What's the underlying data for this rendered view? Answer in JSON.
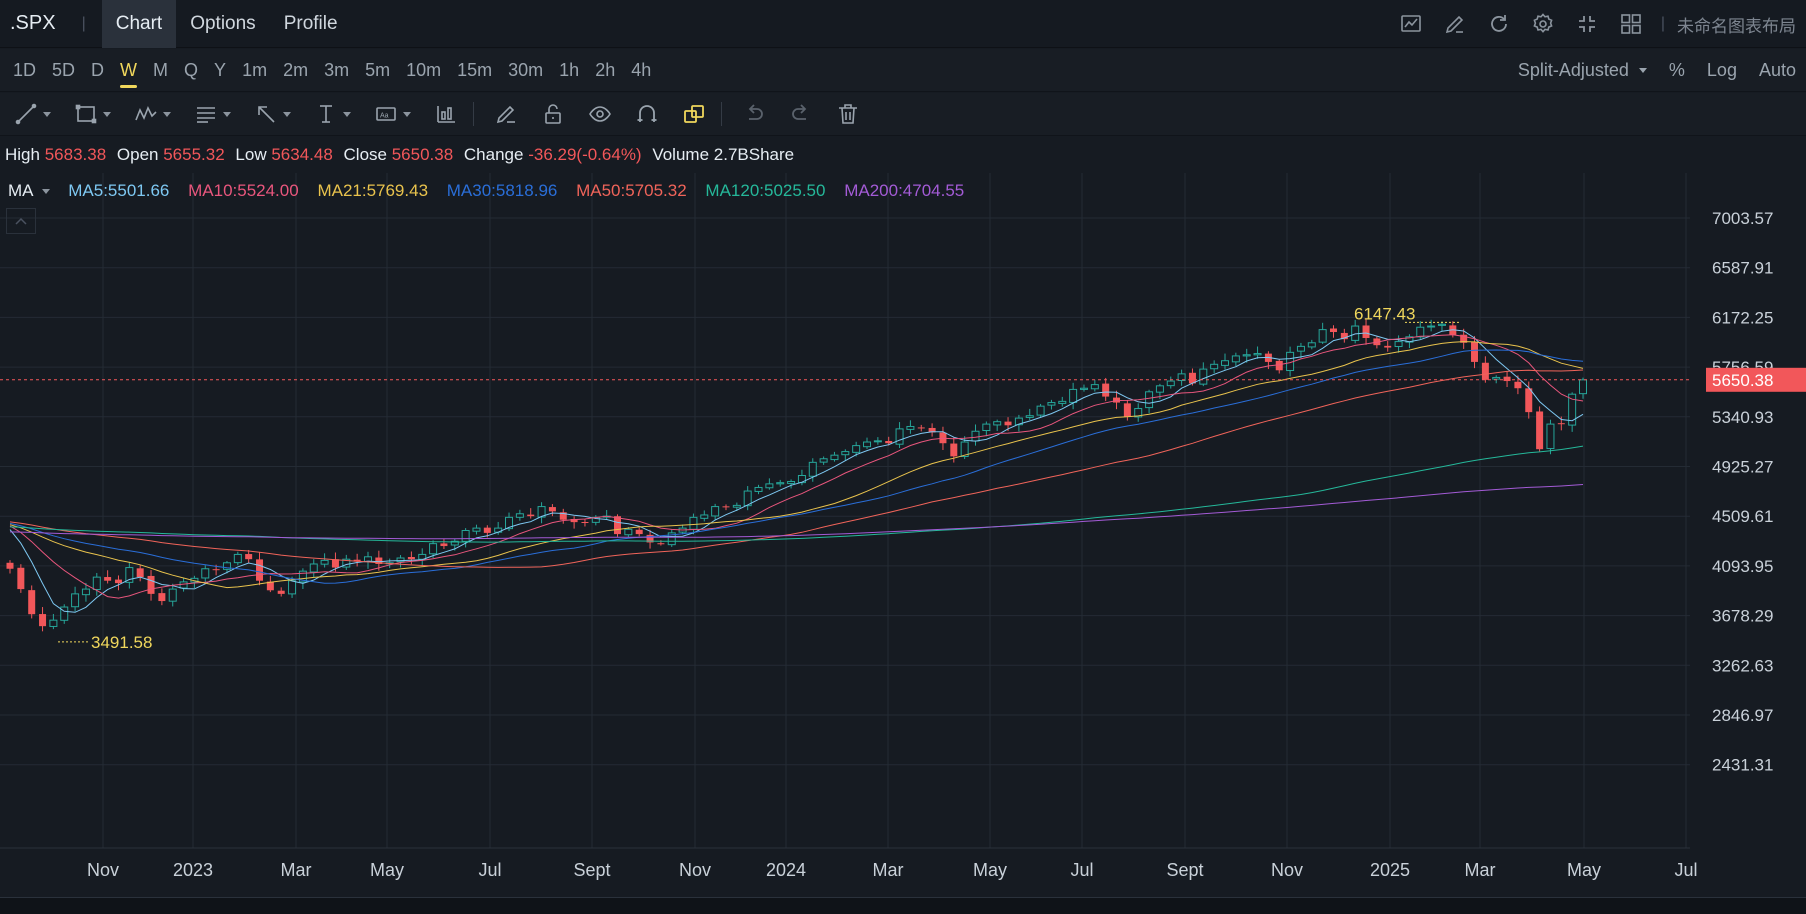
{
  "header": {
    "symbol": ".SPX",
    "tabs": [
      {
        "label": "Chart",
        "active": true
      },
      {
        "label": "Options",
        "active": false
      },
      {
        "label": "Profile",
        "active": false
      }
    ],
    "icons": [
      "indicator-chart-icon",
      "draw-pen-icon",
      "refresh-icon",
      "settings-icon",
      "fullscreen-icon",
      "grid-layout-icon"
    ],
    "layout_name": "未命名图表布局"
  },
  "timeframes": {
    "items": [
      "1D",
      "5D",
      "D",
      "W",
      "M",
      "Q",
      "Y",
      "1m",
      "2m",
      "3m",
      "5m",
      "10m",
      "15m",
      "30m",
      "1h",
      "2h",
      "4h"
    ],
    "active": "W",
    "adjustment": "Split-Adjusted",
    "percent_label": "%",
    "log_label": "Log",
    "auto_label": "Auto"
  },
  "drawing_tools": [
    "trend-line-icon",
    "rectangle-icon",
    "pattern-icon",
    "fibonacci-icon",
    "arrow-icon",
    "measure-icon",
    "text-note-icon",
    "bars-pattern-icon",
    "brush-icon",
    "lock-icon",
    "eye-icon",
    "magnet-icon",
    "link-icon",
    "undo-icon",
    "redo-icon",
    "trash-icon"
  ],
  "quote": {
    "high_label": "High",
    "high": "5683.38",
    "open_label": "Open",
    "open": "5655.32",
    "low_label": "Low",
    "low": "5634.48",
    "close_label": "Close",
    "close": "5650.38",
    "change_label": "Change",
    "change": "-36.29(-0.64%)",
    "volume_label": "Volume",
    "volume": "2.7BShare"
  },
  "ma_legend": {
    "label": "MA",
    "items": [
      {
        "text": "MA5:5501.66",
        "color": "#7ec8f2"
      },
      {
        "text": "MA10:5524.00",
        "color": "#e9567d"
      },
      {
        "text": "MA21:5769.43",
        "color": "#e9c34d"
      },
      {
        "text": "MA30:5818.96",
        "color": "#2a6ed8"
      },
      {
        "text": "MA50:5705.32",
        "color": "#f0645a"
      },
      {
        "text": "MA120:5025.50",
        "color": "#25b89a"
      },
      {
        "text": "MA200:4704.55",
        "color": "#a35bd6"
      }
    ]
  },
  "chart_data": {
    "type": "candlestick",
    "y_ticks": [
      "7003.57",
      "6587.91",
      "6172.25",
      "5756.59",
      "5340.93",
      "4925.27",
      "4509.61",
      "4093.95",
      "3678.29",
      "3262.63",
      "2846.97",
      "2431.31"
    ],
    "ylim": [
      2431.31,
      7003.57
    ],
    "x_ticks": [
      "Nov",
      "2023",
      "Mar",
      "May",
      "Jul",
      "Sept",
      "Nov",
      "2024",
      "Mar",
      "May",
      "Jul",
      "Sept",
      "Nov",
      "2025",
      "Mar",
      "May",
      "Jul"
    ],
    "last_price": "5650.38",
    "high_annotation": "6147.43",
    "low_annotation": "3491.58",
    "colors": {
      "up": "#26a69a",
      "down": "#f2575a",
      "grid": "#242b34",
      "axis_text": "#c9d1d9",
      "last_price": "#f2575a",
      "annotation": "#f0d75c"
    },
    "weekly_closes": [
      4070,
      3900,
      3690,
      3590,
      3640,
      3750,
      3860,
      3900,
      4000,
      3970,
      3950,
      4080,
      4000,
      3860,
      3800,
      3900,
      3960,
      3990,
      4070,
      4060,
      4120,
      4190,
      4150,
      3970,
      3890,
      3860,
      3970,
      4050,
      4110,
      4140,
      4080,
      4150,
      4130,
      4170,
      4110,
      4120,
      4160,
      4150,
      4190,
      4280,
      4260,
      4300,
      4390,
      4410,
      4370,
      4410,
      4500,
      4530,
      4510,
      4590,
      4550,
      4480,
      4460,
      4460,
      4500,
      4510,
      4360,
      4400,
      4360,
      4290,
      4280,
      4370,
      4410,
      4500,
      4520,
      4590,
      4590,
      4600,
      4720,
      4750,
      4780,
      4790,
      4800,
      4850,
      4960,
      4990,
      5020,
      5050,
      5100,
      5130,
      5140,
      5120,
      5240,
      5260,
      5250,
      5210,
      5120,
      5010,
      5130,
      5220,
      5280,
      5300,
      5270,
      5330,
      5350,
      5430,
      5460,
      5470,
      5570,
      5580,
      5610,
      5510,
      5460,
      5340,
      5410,
      5550,
      5600,
      5640,
      5700,
      5620,
      5740,
      5780,
      5810,
      5850,
      5860,
      5870,
      5800,
      5730,
      5880,
      5930,
      5960,
      6070,
      6050,
      5990,
      6100,
      6000,
      5940,
      5920,
      5970,
      6010,
      6090,
      6100,
      6115,
      6026,
      5960,
      5800,
      5650,
      5670,
      5640,
      5580,
      5380,
      5070,
      5280,
      5280,
      5530,
      5650
    ]
  }
}
